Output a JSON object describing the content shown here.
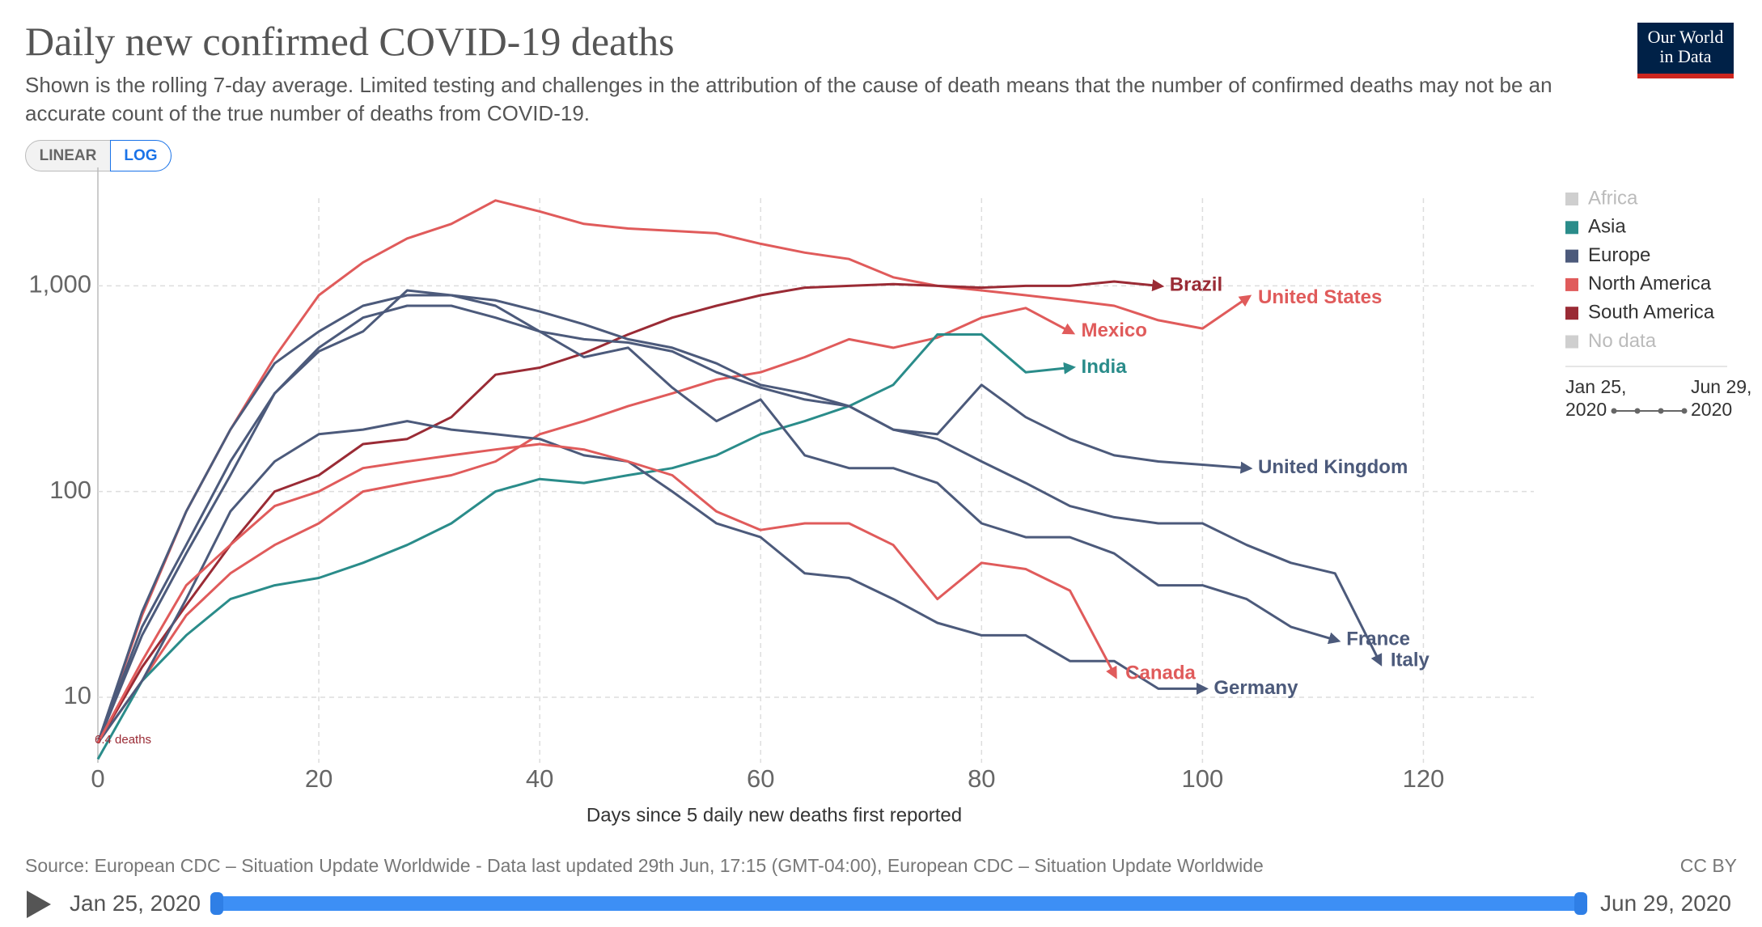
{
  "chart_data": {
    "type": "line",
    "title": "Daily new confirmed COVID-19 deaths",
    "subtitle": "Shown is the rolling 7-day average. Limited testing and challenges in the attribution of the cause of death means that the number of confirmed deaths may not be an accurate count of the true number of deaths from COVID-19.",
    "scale_buttons": [
      "LINEAR",
      "LOG"
    ],
    "log_scale": true,
    "grid": true,
    "x_label": "Days since 5 daily new deaths first reported",
    "x": [
      0,
      4,
      8,
      12,
      16,
      20,
      24,
      28,
      32,
      36,
      40,
      44,
      48,
      52,
      56,
      60,
      64,
      68,
      72,
      76,
      80,
      84,
      88,
      92,
      96,
      100,
      104,
      108,
      112,
      116,
      120
    ],
    "xlim": [
      0,
      130
    ],
    "xticks": [
      0,
      20,
      40,
      60,
      80,
      100,
      120
    ],
    "ylim": [
      4.8,
      3500
    ],
    "yticks": [
      10,
      100,
      {
        "value": 1000,
        "label": "1,000"
      }
    ],
    "series": [
      {
        "name": "United States",
        "color": "#e05b5b",
        "values": [
          6,
          25,
          80,
          200,
          450,
          900,
          1300,
          1700,
          2000,
          2600,
          2300,
          2000,
          1900,
          1850,
          1800,
          1600,
          1450,
          1350,
          1100,
          1000,
          950,
          900,
          850,
          800,
          680,
          620,
          870,
          null,
          null,
          null,
          null
        ]
      },
      {
        "name": "Brazil",
        "color": "#9a2b35",
        "values": [
          6,
          14,
          28,
          55,
          100,
          120,
          170,
          180,
          230,
          370,
          400,
          470,
          580,
          700,
          800,
          900,
          980,
          1000,
          1020,
          1000,
          980,
          1000,
          1000,
          1050,
          1000,
          null,
          null,
          null,
          null,
          null,
          null
        ]
      },
      {
        "name": "Mexico",
        "color": "#e05b5b",
        "values": [
          6,
          12,
          25,
          40,
          55,
          70,
          100,
          110,
          120,
          140,
          190,
          220,
          260,
          300,
          350,
          380,
          450,
          550,
          500,
          560,
          700,
          780,
          600,
          null,
          null,
          null,
          null,
          null,
          null,
          null,
          null
        ]
      },
      {
        "name": "India",
        "color": "#2a8c8a",
        "values": [
          5,
          12,
          20,
          30,
          35,
          38,
          45,
          55,
          70,
          100,
          115,
          110,
          120,
          130,
          150,
          190,
          220,
          260,
          330,
          580,
          580,
          380,
          400,
          null,
          null,
          null,
          null,
          null,
          null,
          null,
          null
        ]
      },
      {
        "name": "United Kingdom",
        "color": "#4c5a7b",
        "values": [
          6,
          22,
          55,
          140,
          300,
          500,
          700,
          800,
          800,
          700,
          600,
          550,
          530,
          480,
          380,
          320,
          280,
          260,
          200,
          190,
          330,
          230,
          180,
          150,
          140,
          135,
          130,
          null,
          null,
          null,
          null
        ]
      },
      {
        "name": "France",
        "color": "#4c5a7b",
        "values": [
          6,
          20,
          50,
          120,
          300,
          480,
          600,
          950,
          900,
          800,
          600,
          450,
          500,
          320,
          220,
          280,
          150,
          130,
          130,
          110,
          70,
          60,
          60,
          50,
          35,
          35,
          30,
          22,
          19,
          null,
          null
        ]
      },
      {
        "name": "Italy",
        "color": "#4c5a7b",
        "values": [
          6,
          26,
          80,
          200,
          420,
          600,
          800,
          900,
          900,
          850,
          750,
          650,
          550,
          500,
          420,
          330,
          300,
          260,
          200,
          180,
          140,
          110,
          85,
          75,
          70,
          70,
          55,
          45,
          40,
          15,
          null
        ]
      },
      {
        "name": "Germany",
        "color": "#4c5a7b",
        "values": [
          6,
          12,
          30,
          80,
          140,
          190,
          200,
          220,
          200,
          190,
          180,
          150,
          140,
          100,
          70,
          60,
          40,
          38,
          30,
          23,
          20,
          20,
          15,
          15,
          11,
          11,
          null,
          null,
          null,
          null,
          null
        ]
      },
      {
        "name": "Canada",
        "color": "#e05b5b",
        "values": [
          6,
          15,
          35,
          55,
          85,
          100,
          130,
          140,
          150,
          160,
          170,
          160,
          140,
          120,
          80,
          65,
          70,
          70,
          55,
          30,
          45,
          42,
          33,
          13,
          null,
          null,
          null,
          null,
          null,
          null,
          null
        ]
      }
    ],
    "annotations": [
      {
        "text": "6.4 deaths",
        "x": 0,
        "y": 6.4
      }
    ],
    "legend": [
      {
        "name": "Africa",
        "color": "#cfcfcf"
      },
      {
        "name": "Asia",
        "color": "#2a8c8a"
      },
      {
        "name": "Europe",
        "color": "#4c5a7b"
      },
      {
        "name": "North America",
        "color": "#e05b5b"
      },
      {
        "name": "South America",
        "color": "#9a2b35"
      },
      {
        "name": "No data",
        "color": "#cfcfcf"
      }
    ],
    "time_range": [
      "Jan 25, 2020",
      "Jun 29, 2020"
    ],
    "logo": [
      "Our World",
      "in Data"
    ],
    "source": "Source: European CDC – Situation Update Worldwide - Data last updated 29th Jun, 17:15 (GMT-04:00), European CDC – Situation Update Worldwide",
    "license": "CC BY"
  }
}
